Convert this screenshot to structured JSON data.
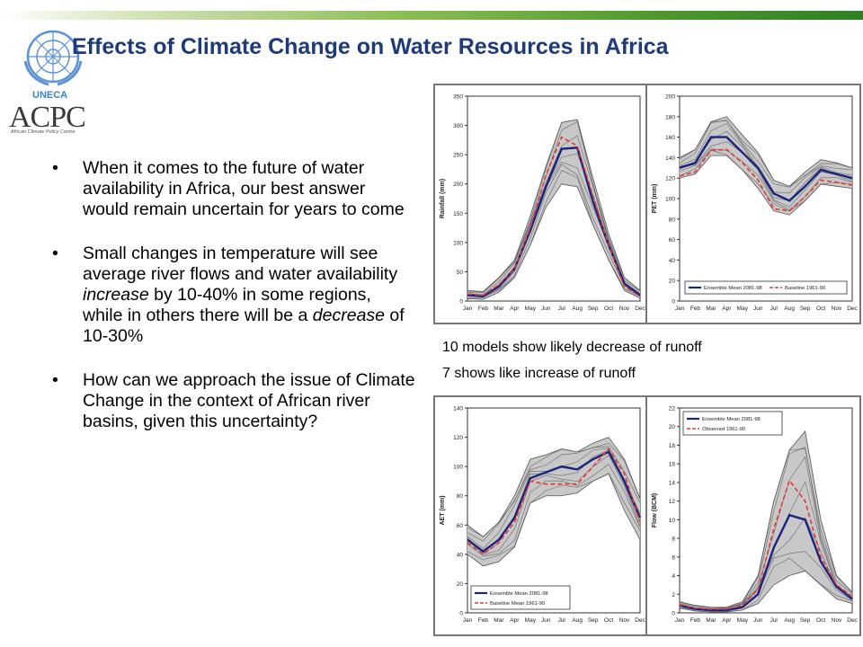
{
  "header": {
    "title": "Effects of Climate Change on Water Resources in Africa",
    "org_label": "UNECA",
    "logo_text": "ACPC",
    "logo_subtitle": "African Climate Policy Centre"
  },
  "bullets": [
    {
      "parts": [
        {
          "text": "When it comes to the future of water availability in Africa, our best answer would remain uncertain for years to come",
          "italic": false
        }
      ]
    },
    {
      "parts": [
        {
          "text": "Small changes in temperature will see average river flows and water availability ",
          "italic": false
        },
        {
          "text": "increase",
          "italic": true
        },
        {
          "text": " by 10-40% in some regions, while in others there will be a ",
          "italic": false
        },
        {
          "text": "decrease",
          "italic": true
        },
        {
          "text": " of 10-30%",
          "italic": false
        }
      ]
    },
    {
      "parts": [
        {
          "text": "How can we approach the issue of Climate Change in the context of African river basins, given this uncertainty?",
          "italic": false
        }
      ]
    }
  ],
  "captions": {
    "line1": "10 models show likely decrease of runoff",
    "line2": "7 shows like increase of runoff"
  },
  "colors": {
    "ensemble": "#1a237e",
    "baseline": "#e53935",
    "band": "#c8c8c8",
    "title": "#1f3a7a"
  },
  "chart_data": [
    {
      "type": "line",
      "id": "rainfall",
      "ylabel": "Rainfall (mm)",
      "ylim": [
        0,
        350
      ],
      "yticks": [
        0,
        50,
        100,
        150,
        200,
        250,
        300,
        350
      ],
      "categories": [
        "Jan",
        "Feb",
        "Mar",
        "Apr",
        "May",
        "Jun",
        "Jul",
        "Aug",
        "Sep",
        "Oct",
        "Nov",
        "Dec"
      ],
      "series": [
        {
          "name": "Ensemble Mean",
          "values": [
            10,
            8,
            25,
            55,
            120,
            195,
            260,
            262,
            170,
            95,
            30,
            10
          ]
        },
        {
          "name": "Baseline",
          "values": [
            12,
            10,
            28,
            55,
            125,
            215,
            280,
            265,
            180,
            95,
            25,
            8
          ]
        },
        {
          "name": "band_low",
          "values": [
            4,
            3,
            15,
            40,
            95,
            160,
            200,
            195,
            130,
            70,
            18,
            5
          ]
        },
        {
          "name": "band_high",
          "values": [
            18,
            16,
            40,
            70,
            145,
            230,
            305,
            310,
            210,
            115,
            40,
            18
          ]
        }
      ],
      "legend": []
    },
    {
      "type": "line",
      "id": "pet",
      "ylabel": "PET (mm)",
      "ylim": [
        0,
        200
      ],
      "yticks": [
        0,
        20,
        40,
        60,
        80,
        100,
        120,
        140,
        160,
        180,
        200
      ],
      "categories": [
        "Jan",
        "Feb",
        "Mar",
        "Apr",
        "May",
        "Jun",
        "Jul",
        "Aug",
        "Sep",
        "Oct",
        "Nov",
        "Dec"
      ],
      "series": [
        {
          "name": "Ensemble Mean",
          "values": [
            130,
            135,
            160,
            160,
            145,
            130,
            105,
            98,
            112,
            128,
            124,
            120
          ]
        },
        {
          "name": "Baseline",
          "values": [
            122,
            126,
            147,
            148,
            135,
            118,
            90,
            88,
            102,
            118,
            116,
            113
          ]
        },
        {
          "name": "band_low",
          "values": [
            120,
            124,
            142,
            142,
            128,
            110,
            88,
            84,
            98,
            114,
            112,
            110
          ]
        },
        {
          "name": "band_high",
          "values": [
            140,
            148,
            175,
            180,
            162,
            145,
            118,
            112,
            126,
            138,
            135,
            130
          ]
        }
      ],
      "legend": [
        "Ensemble Mean 2081-98",
        "Baseline 1961-90"
      ],
      "legend_pos": "bottom"
    },
    {
      "type": "line",
      "id": "aet",
      "ylabel": "AET (mm)",
      "ylim": [
        0,
        140
      ],
      "yticks": [
        0,
        20,
        40,
        60,
        80,
        100,
        120,
        140
      ],
      "categories": [
        "Jan",
        "Feb",
        "Mar",
        "Apr",
        "May",
        "Jun",
        "Jul",
        "Aug",
        "Sep",
        "Oct",
        "Nov",
        "Dec"
      ],
      "series": [
        {
          "name": "Ensemble Mean",
          "values": [
            50,
            42,
            50,
            65,
            92,
            96,
            100,
            98,
            105,
            110,
            90,
            65
          ]
        },
        {
          "name": "Baseline",
          "values": [
            48,
            40,
            48,
            62,
            90,
            88,
            88,
            88,
            100,
            112,
            95,
            62
          ]
        },
        {
          "name": "band_low",
          "values": [
            40,
            32,
            35,
            45,
            75,
            80,
            80,
            82,
            90,
            95,
            70,
            50
          ]
        },
        {
          "name": "band_high",
          "values": [
            60,
            52,
            62,
            80,
            105,
            108,
            112,
            110,
            116,
            120,
            105,
            78
          ]
        }
      ],
      "legend": [
        "Ensemble Mean 2081-98",
        "Baseline Mean 1961-90"
      ],
      "legend_pos": "bottom-left"
    },
    {
      "type": "line",
      "id": "flow",
      "ylabel": "Flow (BCM)",
      "ylim": [
        0,
        22
      ],
      "yticks": [
        0,
        2,
        4,
        6,
        8,
        10,
        12,
        14,
        16,
        18,
        20,
        22
      ],
      "categories": [
        "Jan",
        "Feb",
        "Mar",
        "Apr",
        "May",
        "Jun",
        "Jul",
        "Aug",
        "Sep",
        "Oct",
        "Nov",
        "Dec"
      ],
      "series": [
        {
          "name": "Ensemble Mean",
          "values": [
            0.8,
            0.4,
            0.3,
            0.3,
            0.6,
            2.0,
            7.0,
            10.5,
            10.0,
            5.5,
            2.8,
            1.5
          ]
        },
        {
          "name": "Observed",
          "values": [
            0.9,
            0.5,
            0.4,
            0.4,
            0.8,
            2.5,
            9.0,
            14.2,
            12.0,
            6.0,
            3.0,
            1.8
          ]
        },
        {
          "name": "band_low",
          "values": [
            0.5,
            0.2,
            0.1,
            0.1,
            0.3,
            1.0,
            3.0,
            4.0,
            4.5,
            3.0,
            1.5,
            1.0
          ]
        },
        {
          "name": "band_high",
          "values": [
            1.2,
            0.8,
            0.6,
            0.6,
            1.2,
            4.0,
            12.0,
            17.5,
            19.5,
            10.0,
            4.0,
            2.2
          ]
        }
      ],
      "legend": [
        "Ensemble Mean 2081-98",
        "Observed 1961-90"
      ],
      "legend_pos": "top-left"
    }
  ]
}
